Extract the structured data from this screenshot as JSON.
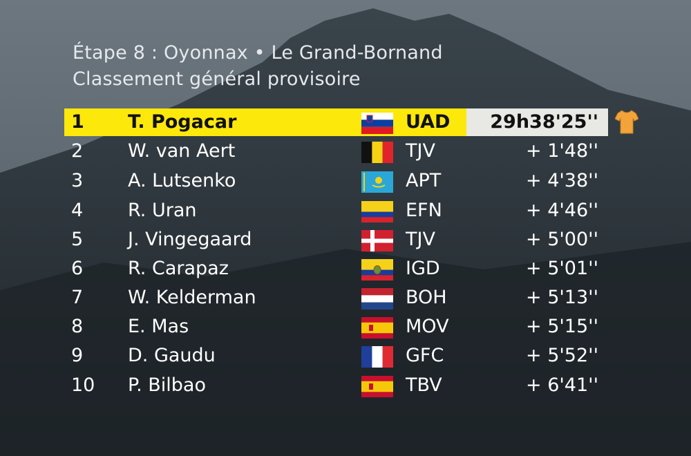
{
  "header": {
    "stage": "Étape 8 : Oyonnax • Le Grand-Bornand",
    "classification": "Classement général provisoire"
  },
  "standings": [
    {
      "rank": "1",
      "name": "T. Pogacar",
      "flag": "slovenia-flag",
      "team": "UAD",
      "time": "29h38'25''"
    },
    {
      "rank": "2",
      "name": "W. van Aert",
      "flag": "belgium-flag",
      "team": "TJV",
      "time": "+ 1'48''"
    },
    {
      "rank": "3",
      "name": "A. Lutsenko",
      "flag": "kazakhstan-flag",
      "team": "APT",
      "time": "+ 4'38''"
    },
    {
      "rank": "4",
      "name": "R. Uran",
      "flag": "colombia-flag",
      "team": "EFN",
      "time": "+ 4'46''"
    },
    {
      "rank": "5",
      "name": "J. Vingegaard",
      "flag": "denmark-flag",
      "team": "TJV",
      "time": "+ 5'00''"
    },
    {
      "rank": "6",
      "name": "R. Carapaz",
      "flag": "ecuador-flag",
      "team": "IGD",
      "time": "+ 5'01''"
    },
    {
      "rank": "7",
      "name": "W. Kelderman",
      "flag": "netherlands-flag",
      "team": "BOH",
      "time": "+ 5'13''"
    },
    {
      "rank": "8",
      "name": "E. Mas",
      "flag": "spain-flag",
      "team": "MOV",
      "time": "+ 5'15''"
    },
    {
      "rank": "9",
      "name": "D. Gaudu",
      "flag": "france-flag",
      "team": "GFC",
      "time": "+ 5'52''"
    },
    {
      "rank": "10",
      "name": "P. Bilbao",
      "flag": "spain-flag",
      "team": "TBV",
      "time": "+ 6'41''"
    }
  ],
  "colors": {
    "leader_bar": "#fce80b",
    "leader_time_box": "#e8e8e5",
    "yellow_jersey": "#f2a33a"
  },
  "icons": {
    "leader": "yellow-jersey-icon"
  }
}
